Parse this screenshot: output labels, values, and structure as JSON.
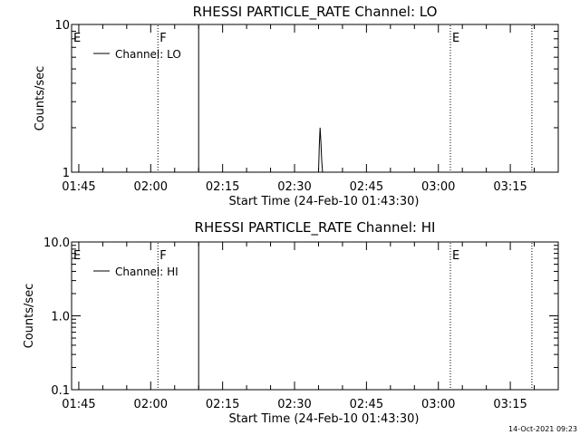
{
  "footer": {
    "timestamp": "14-Oct-2021 09:23"
  },
  "chart_data": [
    {
      "type": "line",
      "title": "RHESSI PARTICLE_RATE Channel: LO",
      "xlabel": "Start Time (24-Feb-10 01:43:30)",
      "ylabel": "Counts/sec",
      "yscale": "log",
      "ylim": [
        1,
        10
      ],
      "xlim_minutes": [
        "01:43",
        "03:25"
      ],
      "x_ticks": [
        "01:45",
        "02:00",
        "02:15",
        "02:30",
        "02:45",
        "03:00",
        "03:15"
      ],
      "y_ticks": [
        "1",
        "10"
      ],
      "legend": {
        "placement": "top-left",
        "entries": [
          "Channel: LO"
        ]
      },
      "markers": [
        {
          "time": "01:43:30",
          "label": "E",
          "style": "dotted"
        },
        {
          "time": "02:01:30",
          "label": "F",
          "style": "dotted"
        },
        {
          "time": "02:10:00",
          "label": "",
          "style": "solid"
        },
        {
          "time": "03:02:30",
          "label": "E",
          "style": "dotted"
        },
        {
          "time": "03:19:30",
          "label": "",
          "style": "dotted"
        }
      ],
      "series": [
        {
          "name": "Channel: LO",
          "points": [
            [
              "02:35:00",
              1
            ],
            [
              "02:35:10",
              1.5
            ],
            [
              "02:35:20",
              2.0
            ],
            [
              "02:35:30",
              1.6
            ],
            [
              "02:35:40",
              1.2
            ],
            [
              "02:35:50",
              1.0
            ]
          ]
        }
      ]
    },
    {
      "type": "line",
      "title": "RHESSI PARTICLE_RATE Channel: HI",
      "xlabel": "Start Time (24-Feb-10 01:43:30)",
      "ylabel": "Counts/sec",
      "yscale": "log",
      "ylim": [
        0.1,
        10
      ],
      "xlim_minutes": [
        "01:43",
        "03:25"
      ],
      "x_ticks": [
        "01:45",
        "02:00",
        "02:15",
        "02:30",
        "02:45",
        "03:00",
        "03:15"
      ],
      "y_ticks": [
        "0.1",
        "1.0",
        "10.0"
      ],
      "legend": {
        "placement": "top-left",
        "entries": [
          "Channel: HI"
        ]
      },
      "markers": [
        {
          "time": "01:43:30",
          "label": "E",
          "style": "dotted"
        },
        {
          "time": "02:01:30",
          "label": "F",
          "style": "dotted"
        },
        {
          "time": "02:10:00",
          "label": "",
          "style": "solid"
        },
        {
          "time": "03:02:30",
          "label": "E",
          "style": "dotted"
        },
        {
          "time": "03:19:30",
          "label": "",
          "style": "dotted"
        }
      ],
      "series": [
        {
          "name": "Channel: HI",
          "points": []
        }
      ]
    }
  ]
}
